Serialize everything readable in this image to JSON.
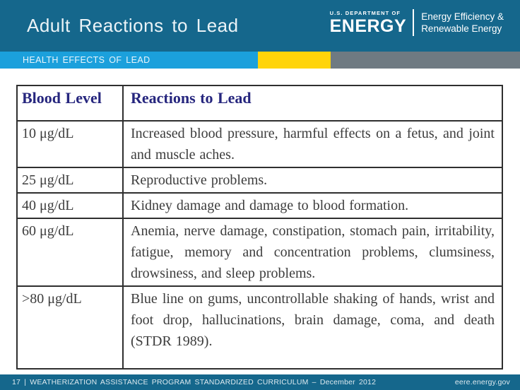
{
  "header": {
    "title": "Adult Reactions to Lead",
    "logo": {
      "dept_small": "U.S. DEPARTMENT OF",
      "dept_big": "ENERGY",
      "program_line1": "Energy Efficiency &",
      "program_line2": "Renewable Energy"
    }
  },
  "banner": {
    "label": "HEALTH EFFECTS OF LEAD"
  },
  "table": {
    "columns": [
      "Blood Level",
      "Reactions to Lead"
    ],
    "rows": [
      {
        "level": "10 μg/dL",
        "reaction": "Increased blood pressure, harmful effects on a fetus, and joint and muscle aches."
      },
      {
        "level": "25 μg/dL",
        "reaction": "Reproductive problems."
      },
      {
        "level": "40 μg/dL",
        "reaction": "Kidney damage and damage to blood formation."
      },
      {
        "level": "60 μg/dL",
        "reaction": "Anemia, nerve damage, constipation, stomach pain, irritability, fatigue, memory and concentration problems, clumsiness, drowsiness, and sleep problems."
      },
      {
        "level": ">80 μg/dL",
        "reaction": "Blue line on gums, uncontrollable shaking of hands, wrist and foot drop, hallucinations, brain damage, coma, and death (STDR 1989)."
      }
    ]
  },
  "footer": {
    "left": "17 | WEATHERIZATION ASSISTANCE PROGRAM STANDARDIZED CURRICULUM – December 2012",
    "right": "eere.energy.gov"
  },
  "colors": {
    "header_teal": "#15678C",
    "band_blue": "#1BA0DC",
    "band_yellow": "#FFD40A",
    "band_gray": "#6F7A82",
    "table_header_text": "#26267E",
    "table_border": "#2F2F2F",
    "body_text": "#3C3C3C"
  }
}
